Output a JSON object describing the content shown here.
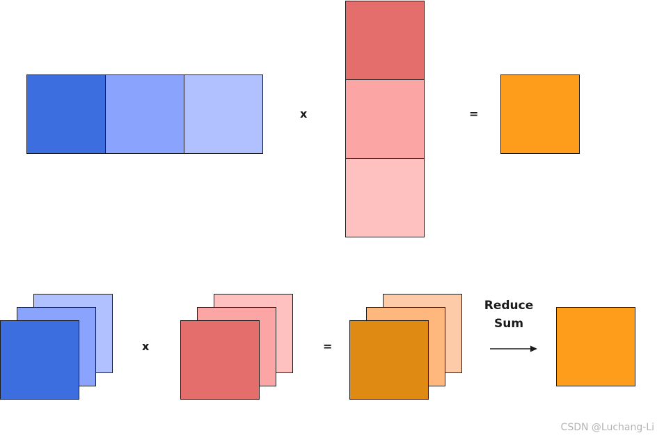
{
  "colors": {
    "blue_1": "#3d6ee0",
    "blue_2": "#8aa3fc",
    "blue_3": "#b1c0ff",
    "red_1": "#e36e6c",
    "red_2": "#fba6a4",
    "red_3": "#fec1c0",
    "orange_1": "#df8a12",
    "orange_2": "#feb87e",
    "orange_3": "#fecba8",
    "orange_result": "#fe9d1b"
  },
  "top": {
    "multiply_symbol": "x",
    "equals_symbol": "="
  },
  "bottom": {
    "multiply_symbol": "x",
    "equals_symbol": "=",
    "reduce_label_line1": "Reduce",
    "reduce_label_line2": "Sum"
  },
  "watermark": "CSDN @Luchang-Li"
}
